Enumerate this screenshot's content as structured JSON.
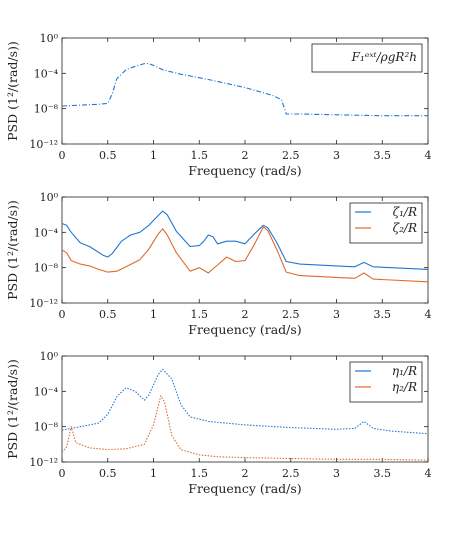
{
  "chart_data": [
    {
      "type": "line",
      "ylabel": "PSD (1²/(rad/s))",
      "xlabel": "Frequency (rad/s)",
      "xlim": [
        0,
        4
      ],
      "ylim_log10": [
        -12,
        0
      ],
      "yscale": "log",
      "x_ticks": [
        "0",
        "0.5",
        "1",
        "1.5",
        "2",
        "2.5",
        "3",
        "3.5",
        "4"
      ],
      "y_ticks": [
        "10⁰",
        "10⁻⁴",
        "10⁻⁸",
        "10⁻¹²"
      ],
      "legend_placement": "top-right",
      "series": [
        {
          "name": "F₁ᵉˣᵗ/ρgR²h",
          "color": "#1f77d4",
          "style": "dashdot",
          "points_log10": [
            [
              0,
              -7.7
            ],
            [
              0.2,
              -7.6
            ],
            [
              0.4,
              -7.5
            ],
            [
              0.5,
              -7.4
            ],
            [
              0.55,
              -6.3
            ],
            [
              0.6,
              -4.6
            ],
            [
              0.7,
              -3.6
            ],
            [
              0.8,
              -3.2
            ],
            [
              0.9,
              -2.9
            ],
            [
              0.95,
              -2.9
            ],
            [
              1.0,
              -3.1
            ],
            [
              1.1,
              -3.6
            ],
            [
              1.3,
              -4.1
            ],
            [
              1.6,
              -4.7
            ],
            [
              2.0,
              -5.6
            ],
            [
              2.3,
              -6.5
            ],
            [
              2.4,
              -7.0
            ],
            [
              2.45,
              -8.6
            ],
            [
              2.6,
              -8.6
            ],
            [
              3.0,
              -8.7
            ],
            [
              3.5,
              -8.8
            ],
            [
              4.0,
              -8.8
            ]
          ]
        }
      ]
    },
    {
      "type": "line",
      "ylabel": "PSD (1²/(rad/s))",
      "xlabel": "Frequency (rad/s)",
      "xlim": [
        0,
        4
      ],
      "ylim_log10": [
        -12,
        0
      ],
      "yscale": "log",
      "x_ticks": [
        "0",
        "0.5",
        "1",
        "1.5",
        "2",
        "2.5",
        "3",
        "3.5",
        "4"
      ],
      "y_ticks": [
        "10⁰",
        "10⁻⁴",
        "10⁻⁸",
        "10⁻¹²"
      ],
      "legend_placement": "top-right",
      "series": [
        {
          "name": "ζ₁/R",
          "color": "#1f77d4",
          "points_log10": [
            [
              0,
              -3.0
            ],
            [
              0.05,
              -3.2
            ],
            [
              0.1,
              -4.0
            ],
            [
              0.2,
              -5.2
            ],
            [
              0.3,
              -5.6
            ],
            [
              0.45,
              -6.6
            ],
            [
              0.5,
              -6.8
            ],
            [
              0.55,
              -6.4
            ],
            [
              0.65,
              -5.0
            ],
            [
              0.75,
              -4.3
            ],
            [
              0.85,
              -4.0
            ],
            [
              0.95,
              -3.2
            ],
            [
              1.05,
              -2.1
            ],
            [
              1.1,
              -1.6
            ],
            [
              1.15,
              -2.0
            ],
            [
              1.25,
              -3.9
            ],
            [
              1.4,
              -5.6
            ],
            [
              1.5,
              -5.5
            ],
            [
              1.55,
              -5.0
            ],
            [
              1.6,
              -4.3
            ],
            [
              1.65,
              -4.5
            ],
            [
              1.7,
              -5.3
            ],
            [
              1.8,
              -5.0
            ],
            [
              1.9,
              -5.0
            ],
            [
              2.0,
              -5.3
            ],
            [
              2.1,
              -4.2
            ],
            [
              2.2,
              -3.2
            ],
            [
              2.25,
              -3.5
            ],
            [
              2.35,
              -5.2
            ],
            [
              2.45,
              -7.3
            ],
            [
              2.6,
              -7.6
            ],
            [
              3.0,
              -7.8
            ],
            [
              3.2,
              -7.9
            ],
            [
              3.3,
              -7.4
            ],
            [
              3.4,
              -7.9
            ],
            [
              3.6,
              -8.0
            ],
            [
              4.0,
              -8.2
            ]
          ]
        },
        {
          "name": "ζ₂/R",
          "color": "#e06a2c",
          "points_log10": [
            [
              0,
              -6.0
            ],
            [
              0.05,
              -6.3
            ],
            [
              0.1,
              -7.2
            ],
            [
              0.2,
              -7.6
            ],
            [
              0.3,
              -7.8
            ],
            [
              0.4,
              -8.2
            ],
            [
              0.5,
              -8.5
            ],
            [
              0.6,
              -8.4
            ],
            [
              0.7,
              -7.9
            ],
            [
              0.85,
              -7.1
            ],
            [
              0.95,
              -5.9
            ],
            [
              1.05,
              -4.2
            ],
            [
              1.1,
              -3.6
            ],
            [
              1.15,
              -4.3
            ],
            [
              1.25,
              -6.3
            ],
            [
              1.4,
              -8.4
            ],
            [
              1.5,
              -8.0
            ],
            [
              1.6,
              -8.6
            ],
            [
              1.7,
              -7.7
            ],
            [
              1.8,
              -6.8
            ],
            [
              1.9,
              -7.3
            ],
            [
              2.0,
              -7.2
            ],
            [
              2.1,
              -5.4
            ],
            [
              2.2,
              -3.4
            ],
            [
              2.25,
              -3.8
            ],
            [
              2.35,
              -6.0
            ],
            [
              2.45,
              -8.5
            ],
            [
              2.6,
              -8.9
            ],
            [
              3.0,
              -9.1
            ],
            [
              3.2,
              -9.2
            ],
            [
              3.3,
              -8.6
            ],
            [
              3.4,
              -9.3
            ],
            [
              3.6,
              -9.4
            ],
            [
              4.0,
              -9.6
            ]
          ]
        }
      ]
    },
    {
      "type": "line",
      "ylabel": "PSD (1²/(rad/s))",
      "xlabel": "Frequency (rad/s)",
      "xlim": [
        0,
        4
      ],
      "ylim_log10": [
        -12,
        0
      ],
      "yscale": "log",
      "x_ticks": [
        "0",
        "0.5",
        "1",
        "1.5",
        "2",
        "2.5",
        "3",
        "3.5",
        "4"
      ],
      "y_ticks": [
        "10⁰",
        "10⁻⁴",
        "10⁻⁸",
        "10⁻¹²"
      ],
      "legend_placement": "top-right",
      "series": [
        {
          "name": "η₁/R",
          "color": "#1f77d4",
          "style": "dotted",
          "points_log10": [
            [
              0,
              -8.4
            ],
            [
              0.1,
              -8.2
            ],
            [
              0.2,
              -8.0
            ],
            [
              0.4,
              -7.6
            ],
            [
              0.5,
              -6.6
            ],
            [
              0.6,
              -4.6
            ],
            [
              0.7,
              -3.6
            ],
            [
              0.8,
              -4.0
            ],
            [
              0.9,
              -5.0
            ],
            [
              0.95,
              -4.4
            ],
            [
              1.05,
              -2.1
            ],
            [
              1.1,
              -1.5
            ],
            [
              1.2,
              -2.6
            ],
            [
              1.3,
              -5.5
            ],
            [
              1.4,
              -6.9
            ],
            [
              1.6,
              -7.4
            ],
            [
              2.0,
              -7.8
            ],
            [
              2.5,
              -8.1
            ],
            [
              3.0,
              -8.3
            ],
            [
              3.2,
              -8.2
            ],
            [
              3.3,
              -7.4
            ],
            [
              3.4,
              -8.2
            ],
            [
              3.6,
              -8.5
            ],
            [
              4.0,
              -8.8
            ]
          ]
        },
        {
          "name": "η₂/R",
          "color": "#e06a2c",
          "style": "dotted",
          "points_log10": [
            [
              0,
              -10.9
            ],
            [
              0.05,
              -10.3
            ],
            [
              0.1,
              -8.0
            ],
            [
              0.15,
              -9.8
            ],
            [
              0.3,
              -10.4
            ],
            [
              0.5,
              -10.6
            ],
            [
              0.7,
              -10.5
            ],
            [
              0.9,
              -10.0
            ],
            [
              1.0,
              -7.8
            ],
            [
              1.08,
              -4.5
            ],
            [
              1.12,
              -5.2
            ],
            [
              1.2,
              -9.0
            ],
            [
              1.3,
              -10.6
            ],
            [
              1.5,
              -11.2
            ],
            [
              1.7,
              -11.4
            ],
            [
              2.0,
              -11.5
            ],
            [
              2.5,
              -11.6
            ],
            [
              3.0,
              -11.7
            ],
            [
              3.5,
              -11.7
            ],
            [
              4.0,
              -11.8
            ]
          ]
        }
      ]
    }
  ]
}
